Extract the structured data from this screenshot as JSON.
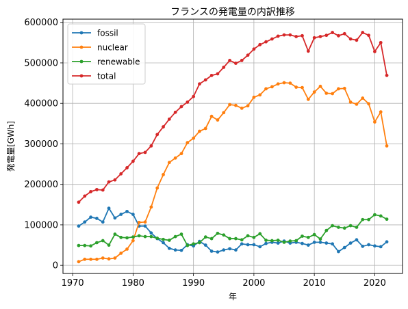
{
  "chart_data": {
    "type": "line",
    "title": "フランスの発電量の内訳推移",
    "xlabel": "年",
    "ylabel": "発電量[GWh]",
    "xlim": [
      1968.4,
      2024.6
    ],
    "ylim": [
      -20000,
      608000
    ],
    "xticks": [
      1970,
      1980,
      1990,
      2000,
      2010,
      2020
    ],
    "yticks": [
      0,
      100000,
      200000,
      300000,
      400000,
      500000,
      600000
    ],
    "grid": true,
    "legend_position": "upper-left",
    "x": [
      1971,
      1972,
      1973,
      1974,
      1975,
      1976,
      1977,
      1978,
      1979,
      1980,
      1981,
      1982,
      1983,
      1984,
      1985,
      1986,
      1987,
      1988,
      1989,
      1990,
      1991,
      1992,
      1993,
      1994,
      1995,
      1996,
      1997,
      1998,
      1999,
      2000,
      2001,
      2002,
      2003,
      2004,
      2005,
      2006,
      2007,
      2008,
      2009,
      2010,
      2011,
      2012,
      2013,
      2014,
      2015,
      2016,
      2017,
      2018,
      2019,
      2020,
      2021,
      2022
    ],
    "series": [
      {
        "name": "fossil",
        "color": "#1f77b4",
        "values": [
          97000,
          107000,
          119000,
          116000,
          107000,
          141000,
          117000,
          126000,
          133000,
          126000,
          97000,
          97000,
          80000,
          66000,
          56000,
          42000,
          38000,
          37000,
          51000,
          48000,
          59000,
          50000,
          35000,
          33000,
          38000,
          41000,
          38000,
          53000,
          51000,
          51000,
          46000,
          54000,
          57000,
          55000,
          60000,
          55000,
          57000,
          54000,
          50000,
          57000,
          57000,
          55000,
          53000,
          34000,
          44000,
          55000,
          63000,
          47000,
          51000,
          48000,
          46000,
          58000
        ]
      },
      {
        "name": "nuclear",
        "color": "#ff7f0e",
        "values": [
          9000,
          15000,
          15000,
          15000,
          18000,
          16000,
          18000,
          30000,
          40000,
          61000,
          106000,
          107000,
          144000,
          191000,
          224000,
          254000,
          265000,
          276000,
          303000,
          314000,
          331000,
          338000,
          368000,
          359000,
          377000,
          397000,
          395000,
          388000,
          394000,
          415000,
          421000,
          436000,
          441000,
          448000,
          451000,
          450000,
          440000,
          439000,
          410000,
          428000,
          442000,
          425000,
          424000,
          436000,
          437000,
          403000,
          398000,
          413000,
          399000,
          354000,
          379000,
          295000
        ]
      },
      {
        "name": "renewable",
        "color": "#2ca02c",
        "values": [
          49000,
          49000,
          48000,
          56000,
          61000,
          50000,
          77000,
          69000,
          68000,
          70000,
          73000,
          71000,
          71000,
          67000,
          64000,
          62000,
          71000,
          77000,
          49000,
          53000,
          56000,
          70000,
          66000,
          79000,
          75000,
          66000,
          66000,
          63000,
          73000,
          69000,
          78000,
          62000,
          61000,
          62000,
          57000,
          60000,
          61000,
          72000,
          69000,
          76000,
          65000,
          86000,
          98000,
          94000,
          92000,
          98000,
          94000,
          113000,
          113000,
          125000,
          122000,
          114000
        ]
      },
      {
        "name": "total",
        "color": "#d62728",
        "values": [
          156000,
          171000,
          182000,
          187000,
          186000,
          206000,
          211000,
          226000,
          241000,
          257000,
          276000,
          279000,
          295000,
          323000,
          342000,
          361000,
          378000,
          392000,
          403000,
          417000,
          448000,
          458000,
          469000,
          473000,
          489000,
          506000,
          499000,
          506000,
          519000,
          534000,
          545000,
          552000,
          559000,
          566000,
          569000,
          569000,
          565000,
          567000,
          529000,
          562000,
          565000,
          568000,
          575000,
          567000,
          572000,
          559000,
          556000,
          575000,
          568000,
          528000,
          550000,
          469000
        ]
      }
    ]
  }
}
